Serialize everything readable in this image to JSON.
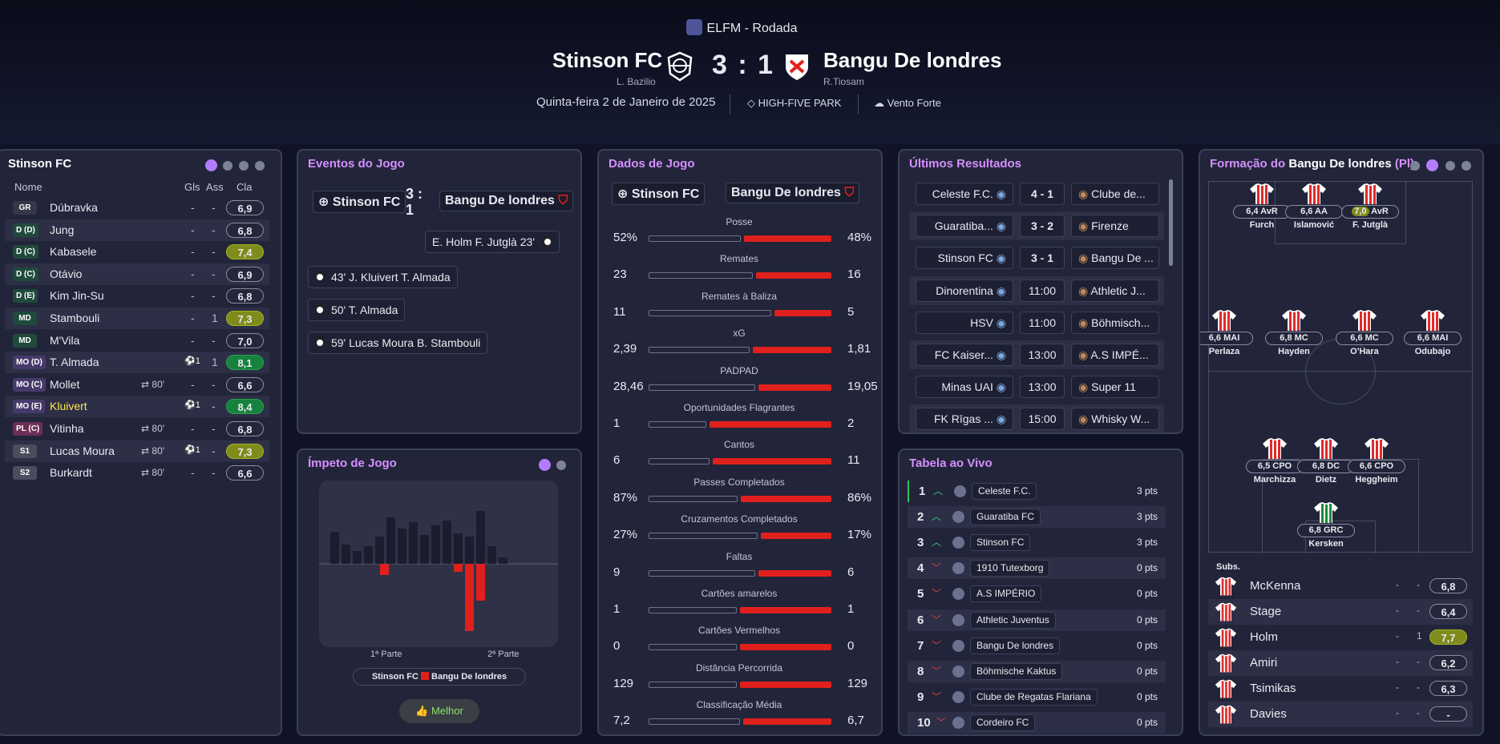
{
  "header": {
    "competition": "ELFM - Rodada",
    "home_team": "Stinson FC",
    "home_manager": "L. Bazilio",
    "score": "3 : 1",
    "away_team": "Bangu De londres",
    "away_manager": "R.Tiosam",
    "date": "Quinta-feira 2 de Janeiro de 2025",
    "stadium": "HIGH-FIVE PARK",
    "weather": "Vento Forte"
  },
  "lineup": {
    "title": "Stinson FC",
    "col_name": "Nome",
    "col_goals": "Gls",
    "col_assists": "Ass",
    "col_rating": "Cla",
    "players": [
      {
        "pos": "GR",
        "name": "Dúbravka",
        "sub": "",
        "gls": "-",
        "ass": "-",
        "rating": "6,9",
        "rc": ""
      },
      {
        "pos": "D (D)",
        "name": "Jung",
        "sub": "",
        "gls": "-",
        "ass": "-",
        "rating": "6,8",
        "rc": ""
      },
      {
        "pos": "D (C)",
        "name": "Kabasele",
        "sub": "",
        "gls": "-",
        "ass": "-",
        "rating": "7,4",
        "rc": "y"
      },
      {
        "pos": "D (C)",
        "name": "Otávio",
        "sub": "",
        "gls": "-",
        "ass": "-",
        "rating": "6,9",
        "rc": ""
      },
      {
        "pos": "D (E)",
        "name": "Kim Jin-Su",
        "sub": "",
        "gls": "-",
        "ass": "-",
        "rating": "6,8",
        "rc": ""
      },
      {
        "pos": "MD",
        "name": "Stambouli",
        "sub": "",
        "gls": "-",
        "ass": "1",
        "rating": "7,3",
        "rc": "y"
      },
      {
        "pos": "MD",
        "name": "M'Vila",
        "sub": "",
        "gls": "-",
        "ass": "-",
        "rating": "7,0",
        "rc": ""
      },
      {
        "pos": "MO (D)",
        "name": "T. Almada",
        "sub": "",
        "gls": "⚽1",
        "ass": "1",
        "rating": "8,1",
        "rc": "g"
      },
      {
        "pos": "MO (C)",
        "name": "Mollet",
        "sub": "⇄ 80'",
        "gls": "-",
        "ass": "-",
        "rating": "6,6",
        "rc": ""
      },
      {
        "pos": "MO (E)",
        "name": "Kluivert",
        "sub": "",
        "gls": "⚽1",
        "ass": "-",
        "rating": "8,4",
        "rc": "g"
      },
      {
        "pos": "PL (C)",
        "name": "Vitinha",
        "sub": "⇄ 80'",
        "gls": "-",
        "ass": "-",
        "rating": "6,8",
        "rc": ""
      },
      {
        "pos": "S1",
        "name": "Lucas Moura",
        "sub": "⇄ 80'",
        "gls": "⚽1",
        "ass": "-",
        "rating": "7,3",
        "rc": "y"
      },
      {
        "pos": "S2",
        "name": "Burkardt",
        "sub": "⇄ 80'",
        "gls": "-",
        "ass": "-",
        "rating": "6,6",
        "rc": ""
      }
    ]
  },
  "events": {
    "title": "Eventos do Jogo",
    "home": "Stinson FC",
    "score": "3 : 1",
    "away": "Bangu De londres",
    "away_event": "E. Holm  F. Jutglà  23'",
    "home_events": [
      "43'  J. Kluivert  T. Almada",
      "50'  T. Almada",
      "59'  Lucas Moura  B. Stambouli"
    ]
  },
  "momentum": {
    "title": "Ímpeto de Jogo",
    "half1": "1ª Parte",
    "half2": "2ª Parte",
    "legend_home": "Stinson FC",
    "legend_away": "Bangu De londres",
    "button": "Melhor"
  },
  "stats": {
    "title": "Dados de Jogo",
    "home": "Stinson FC",
    "away": "Bangu De londres",
    "rows": [
      {
        "label": "Posse",
        "h": "52%",
        "a": "48%",
        "hv": 52,
        "av": 48
      },
      {
        "label": "Remates",
        "h": "23",
        "a": "16",
        "hv": 23,
        "av": 16
      },
      {
        "label": "Remates à Baliza",
        "h": "11",
        "a": "5",
        "hv": 11,
        "av": 5
      },
      {
        "label": "xG",
        "h": "2,39",
        "a": "1,81",
        "hv": 2.39,
        "av": 1.81
      },
      {
        "label": "PADPAD",
        "h": "28,46",
        "a": "19,05",
        "hv": 28.46,
        "av": 19.05
      },
      {
        "label": "Oportunidades Flagrantes",
        "h": "1",
        "a": "2",
        "hv": 1,
        "av": 2
      },
      {
        "label": "Cantos",
        "h": "6",
        "a": "11",
        "hv": 6,
        "av": 11
      },
      {
        "label": "Passes Completados",
        "h": "87%",
        "a": "86%",
        "hv": 87,
        "av": 86
      },
      {
        "label": "Cruzamentos Completados",
        "h": "27%",
        "a": "17%",
        "hv": 27,
        "av": 17
      },
      {
        "label": "Faltas",
        "h": "9",
        "a": "6",
        "hv": 9,
        "av": 6
      },
      {
        "label": "Cartões amarelos",
        "h": "1",
        "a": "1",
        "hv": 1,
        "av": 1
      },
      {
        "label": "Cartões Vermelhos",
        "h": "0",
        "a": "0",
        "hv": 0,
        "av": 0
      },
      {
        "label": "Distância Percorrida",
        "h": "129",
        "a": "129",
        "hv": 129,
        "av": 129
      },
      {
        "label": "Classificação Média",
        "h": "7,2",
        "a": "6,7",
        "hv": 7.2,
        "av": 6.7
      }
    ]
  },
  "results": {
    "title": "Últimos Resultados",
    "rows": [
      {
        "home": "Celeste F.C.",
        "mid": "4 - 1",
        "away": "Clube de..."
      },
      {
        "home": "Guaratiba...",
        "mid": "3 - 2",
        "away": "Firenze"
      },
      {
        "home": "Stinson FC",
        "mid": "3 - 1",
        "away": "Bangu De ..."
      },
      {
        "home": "Dinorentina",
        "mid": "11:00",
        "away": "Athletic J..."
      },
      {
        "home": "HSV",
        "mid": "11:00",
        "away": "Böhmisch..."
      },
      {
        "home": "FC Kaiser...",
        "mid": "13:00",
        "away": "A.S IMPÉ..."
      },
      {
        "home": "Minas UAI",
        "mid": "13:00",
        "away": "Super 11"
      },
      {
        "home": "FK Rīgas ...",
        "mid": "15:00",
        "away": "Whisky W..."
      }
    ]
  },
  "table": {
    "title": "Tabela ao Vivo",
    "rows": [
      {
        "rank": "1",
        "team": "Celeste F.C.",
        "pts": "3 pts",
        "up": true
      },
      {
        "rank": "2",
        "team": "Guaratiba FC",
        "pts": "3 pts",
        "up": true
      },
      {
        "rank": "3",
        "team": "Stinson FC",
        "pts": "3 pts",
        "up": true
      },
      {
        "rank": "4",
        "team": "1910 Tutexborg",
        "pts": "0 pts",
        "up": false
      },
      {
        "rank": "5",
        "team": "A.S IMPÉRIO",
        "pts": "0 pts",
        "up": false
      },
      {
        "rank": "6",
        "team": "Athletic Juventus",
        "pts": "0 pts",
        "up": false
      },
      {
        "rank": "7",
        "team": "Bangu De londres",
        "pts": "0 pts",
        "up": false
      },
      {
        "rank": "8",
        "team": "Böhmische Kaktus",
        "pts": "0 pts",
        "up": false
      },
      {
        "rank": "9",
        "team": "Clube de Regatas Flariana",
        "pts": "0 pts",
        "up": false
      },
      {
        "rank": "10",
        "team": "Cordeiro FC",
        "pts": "0 pts",
        "up": false
      }
    ]
  },
  "formation": {
    "title_prefix": "Formação do",
    "team": "Bangu De londres",
    "suffix": "(Pl)",
    "players": [
      {
        "name": "Furch",
        "rating": "6,4",
        "role": "AvR"
      },
      {
        "name": "Islamović",
        "rating": "6,6",
        "role": "AA"
      },
      {
        "name": "F. Jutglà",
        "rating": "7,0",
        "role": "AvR"
      },
      {
        "name": "Perlaza",
        "rating": "6,6",
        "role": "MAI"
      },
      {
        "name": "Hayden",
        "rating": "6,8",
        "role": "MC"
      },
      {
        "name": "O'Hara",
        "rating": "6,6",
        "role": "MC"
      },
      {
        "name": "Odubajo",
        "rating": "6,6",
        "role": "MAI"
      },
      {
        "name": "Marchizza",
        "rating": "6,5",
        "role": "CPO"
      },
      {
        "name": "Dietz",
        "rating": "6,8",
        "role": "DC"
      },
      {
        "name": "Heggheim",
        "rating": "6,6",
        "role": "CPO"
      },
      {
        "name": "Kersken",
        "rating": "6,8",
        "role": "GRC"
      }
    ],
    "subs_label": "Subs.",
    "subs": [
      {
        "name": "McKenna",
        "gls": "-",
        "ass": "-",
        "rating": "6,8"
      },
      {
        "name": "Stage",
        "gls": "-",
        "ass": "-",
        "rating": "6,4"
      },
      {
        "name": "Holm",
        "gls": "-",
        "ass": "1",
        "rating": "7,7"
      },
      {
        "name": "Amiri",
        "gls": "-",
        "ass": "-",
        "rating": "6,2"
      },
      {
        "name": "Tsimikas",
        "gls": "-",
        "ass": "-",
        "rating": "6,3"
      },
      {
        "name": "Davies",
        "gls": "-",
        "ass": "-",
        "rating": "-"
      }
    ]
  }
}
